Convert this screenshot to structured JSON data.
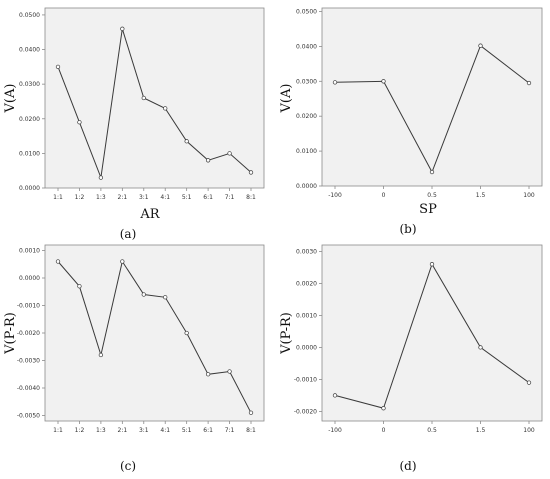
{
  "figure": {
    "colors": {
      "background": "#ffffff",
      "plot_background": "#f1f1f1",
      "frame": "#8a8a8a",
      "line": "#3a3a3a"
    }
  },
  "chart_data": [
    {
      "panel_label": "(a)",
      "type": "line",
      "xlabel": "AR",
      "ylabel": "V(A)",
      "categories": [
        "1:1",
        "1:2",
        "1:3",
        "2:1",
        "3:1",
        "4:1",
        "5:1",
        "6:1",
        "7:1",
        "8:1"
      ],
      "values": [
        0.035,
        0.019,
        0.003,
        0.046,
        0.026,
        0.023,
        0.0135,
        0.008,
        0.01,
        0.0045
      ],
      "ylim": [
        0.0,
        0.052
      ],
      "yticks": [
        "0.0000",
        "0.0100",
        "0.0200",
        "0.0300",
        "0.0400",
        "0.0500"
      ],
      "ytick_values": [
        0,
        0.01,
        0.02,
        0.03,
        0.04,
        0.05
      ],
      "grid": false
    },
    {
      "panel_label": "(b)",
      "type": "line",
      "xlabel": "SP",
      "ylabel": "V(A)",
      "categories": [
        "-100",
        "0",
        "0.5",
        "1.5",
        "100"
      ],
      "values": [
        0.0297,
        0.03,
        0.004,
        0.0402,
        0.0295
      ],
      "ylim": [
        0.0,
        0.051
      ],
      "yticks": [
        "0.0000",
        "0.0100",
        "0.0200",
        "0.0300",
        "0.0400",
        "0.0500"
      ],
      "ytick_values": [
        0,
        0.01,
        0.02,
        0.03,
        0.04,
        0.05
      ],
      "grid": false
    },
    {
      "panel_label": "(c)",
      "type": "line",
      "xlabel": "",
      "ylabel": "V(P-R)",
      "categories": [
        "1:1",
        "1:2",
        "1:3",
        "2:1",
        "3:1",
        "4:1",
        "5:1",
        "6:1",
        "7:1",
        "8:1"
      ],
      "values": [
        0.0006,
        -0.0003,
        -0.0028,
        0.0006,
        -0.0006,
        -0.0007,
        -0.002,
        -0.0035,
        -0.0034,
        -0.0049
      ],
      "ylim": [
        -0.0052,
        0.0012
      ],
      "yticks": [
        "0.0010",
        "0.0000",
        "-0.0010",
        "-0.0020",
        "-0.0030",
        "-0.0040",
        "-0.0050"
      ],
      "ytick_values": [
        0.001,
        0,
        -0.001,
        -0.002,
        -0.003,
        -0.004,
        -0.005
      ],
      "grid": false
    },
    {
      "panel_label": "(d)",
      "type": "line",
      "xlabel": "",
      "ylabel": "V(P-R)",
      "categories": [
        "-100",
        "0",
        "0.5",
        "1.5",
        "100"
      ],
      "values": [
        -0.0015,
        -0.0019,
        0.0026,
        0.0,
        -0.0011
      ],
      "ylim": [
        -0.0023,
        0.0032
      ],
      "yticks": [
        "0.0030",
        "0.0020",
        "0.0010",
        "0.0000",
        "-0.0010",
        "-0.0020"
      ],
      "ytick_values": [
        0.003,
        0.002,
        0.001,
        0,
        -0.001,
        -0.002
      ],
      "grid": false
    }
  ]
}
